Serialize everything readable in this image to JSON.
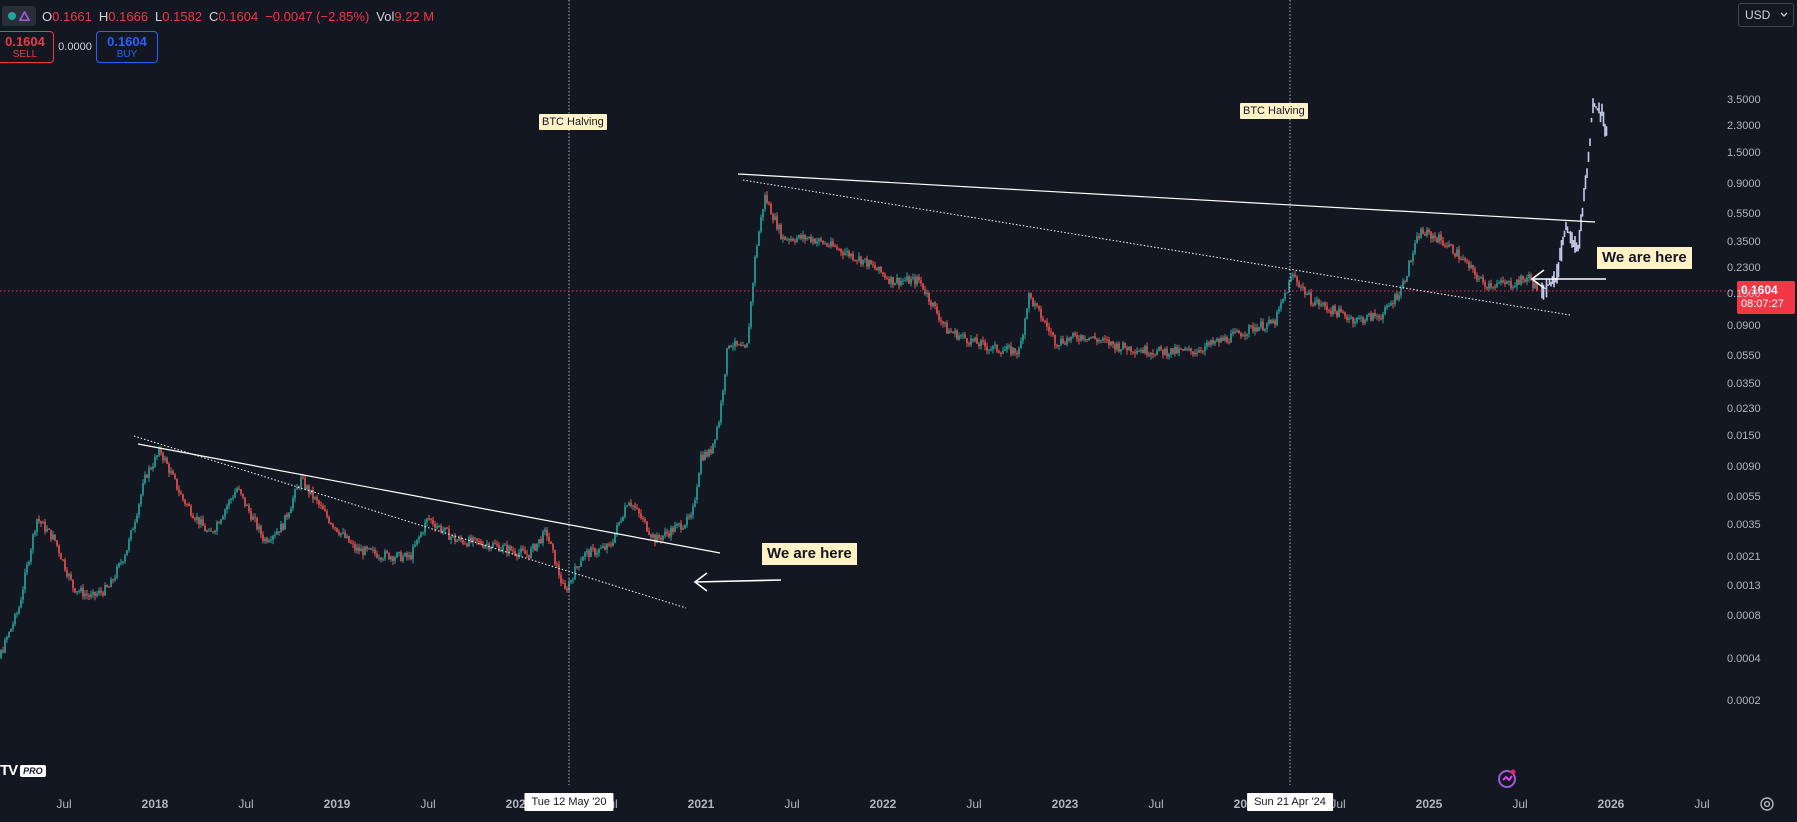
{
  "legend": {
    "open_label": "O",
    "open": "0.1661",
    "high_label": "H",
    "high": "0.1666",
    "low_label": "L",
    "low": "0.1582",
    "close_label": "C",
    "close": "0.1604",
    "change": "−0.0047 (−2.85%)",
    "vol_label": "Vol",
    "volume": "9.22 M"
  },
  "trade": {
    "sell_price": "0.1604",
    "sell_label": "SELL",
    "spread": "0.0000",
    "buy_price": "0.1604",
    "buy_label": "BUY"
  },
  "currency": "USD",
  "annotations": {
    "halving_label": "BTC Halving",
    "here_label": "We are here"
  },
  "last_price": {
    "value": "0.1604",
    "countdown": "08:07:27"
  },
  "x_cursor_labels": [
    "Tue 12 May '20",
    "Sun 21 Apr '24"
  ],
  "branding": {
    "logo": "TV",
    "badge": "PRO"
  },
  "colors": {
    "up": "#26a69a",
    "down": "#ef5350",
    "background": "#131722",
    "projection": "#c5cae9",
    "last_price": "#f23645"
  },
  "icons": [
    "symbol-dot-icon",
    "tradingview-logo-icon",
    "settings-gear-icon",
    "chevron-down-icon",
    "tv-brand-icon"
  ],
  "chart_data": {
    "type": "candlestick",
    "scale": "log",
    "y_ticks": [
      "3.5000",
      "2.3000",
      "1.5000",
      "0.9000",
      "0.5500",
      "0.3500",
      "0.2300",
      "0.1500",
      "0.0900",
      "0.0550",
      "0.0350",
      "0.0230",
      "0.0150",
      "0.0090",
      "0.0055",
      "0.0035",
      "0.0021",
      "0.0013",
      "0.0008",
      "0.0004",
      "0.0002"
    ],
    "x_ticks": [
      "Jul",
      "2018",
      "Jul",
      "2019",
      "Jul",
      "2020",
      "Jul",
      "2021",
      "Jul",
      "2022",
      "Jul",
      "2023",
      "Jul",
      "2024",
      "Jul",
      "2025",
      "Jul",
      "2026",
      "Jul"
    ],
    "series_path": [
      [
        2017.0,
        0.0002
      ],
      [
        2017.1,
        0.0003
      ],
      [
        2017.25,
        0.0009
      ],
      [
        2017.35,
        0.004
      ],
      [
        2017.45,
        0.0028
      ],
      [
        2017.55,
        0.0013
      ],
      [
        2017.65,
        0.0011
      ],
      [
        2017.75,
        0.0013
      ],
      [
        2017.85,
        0.0025
      ],
      [
        2017.95,
        0.008
      ],
      [
        2018.03,
        0.012
      ],
      [
        2018.15,
        0.0055
      ],
      [
        2018.3,
        0.003
      ],
      [
        2018.45,
        0.0065
      ],
      [
        2018.6,
        0.0028
      ],
      [
        2018.7,
        0.0035
      ],
      [
        2018.8,
        0.0075
      ],
      [
        2018.95,
        0.004
      ],
      [
        2019.1,
        0.0024
      ],
      [
        2019.25,
        0.0022
      ],
      [
        2019.4,
        0.0021
      ],
      [
        2019.5,
        0.004
      ],
      [
        2019.65,
        0.0028
      ],
      [
        2019.85,
        0.0026
      ],
      [
        2020.05,
        0.0022
      ],
      [
        2020.15,
        0.0032
      ],
      [
        2020.25,
        0.0012
      ],
      [
        2020.35,
        0.0022
      ],
      [
        2020.5,
        0.0025
      ],
      [
        2020.6,
        0.0055
      ],
      [
        2020.75,
        0.0028
      ],
      [
        2020.95,
        0.004
      ],
      [
        2021.0,
        0.011
      ],
      [
        2021.05,
        0.0115
      ],
      [
        2021.1,
        0.02
      ],
      [
        2021.15,
        0.07
      ],
      [
        2021.25,
        0.06
      ],
      [
        2021.3,
        0.3
      ],
      [
        2021.35,
        0.75
      ],
      [
        2021.45,
        0.38
      ],
      [
        2021.6,
        0.38
      ],
      [
        2021.75,
        0.32
      ],
      [
        2021.9,
        0.26
      ],
      [
        2022.05,
        0.19
      ],
      [
        2022.2,
        0.19
      ],
      [
        2022.35,
        0.085
      ],
      [
        2022.5,
        0.07
      ],
      [
        2022.6,
        0.063
      ],
      [
        2022.75,
        0.06
      ],
      [
        2022.8,
        0.15
      ],
      [
        2022.95,
        0.07
      ],
      [
        2023.1,
        0.078
      ],
      [
        2023.3,
        0.065
      ],
      [
        2023.5,
        0.06
      ],
      [
        2023.7,
        0.06
      ],
      [
        2023.9,
        0.075
      ],
      [
        2024.05,
        0.09
      ],
      [
        2024.15,
        0.095
      ],
      [
        2024.25,
        0.21
      ],
      [
        2024.35,
        0.14
      ],
      [
        2024.45,
        0.12
      ],
      [
        2024.6,
        0.1
      ],
      [
        2024.75,
        0.11
      ],
      [
        2024.85,
        0.17
      ],
      [
        2024.95,
        0.42
      ],
      [
        2025.05,
        0.38
      ],
      [
        2025.15,
        0.3
      ],
      [
        2025.3,
        0.18
      ],
      [
        2025.45,
        0.18
      ],
      [
        2025.55,
        0.2
      ],
      [
        2025.6,
        0.16
      ]
    ],
    "projection_path": [
      [
        2025.62,
        0.16
      ],
      [
        2025.7,
        0.2
      ],
      [
        2025.75,
        0.45
      ],
      [
        2025.82,
        0.32
      ],
      [
        2025.88,
        1.6
      ],
      [
        2025.9,
        3.3
      ],
      [
        2025.95,
        2.9
      ],
      [
        2025.98,
        2.0
      ]
    ],
    "halvings": [
      2020.36,
      2024.3
    ],
    "last_price": 0.1604
  }
}
